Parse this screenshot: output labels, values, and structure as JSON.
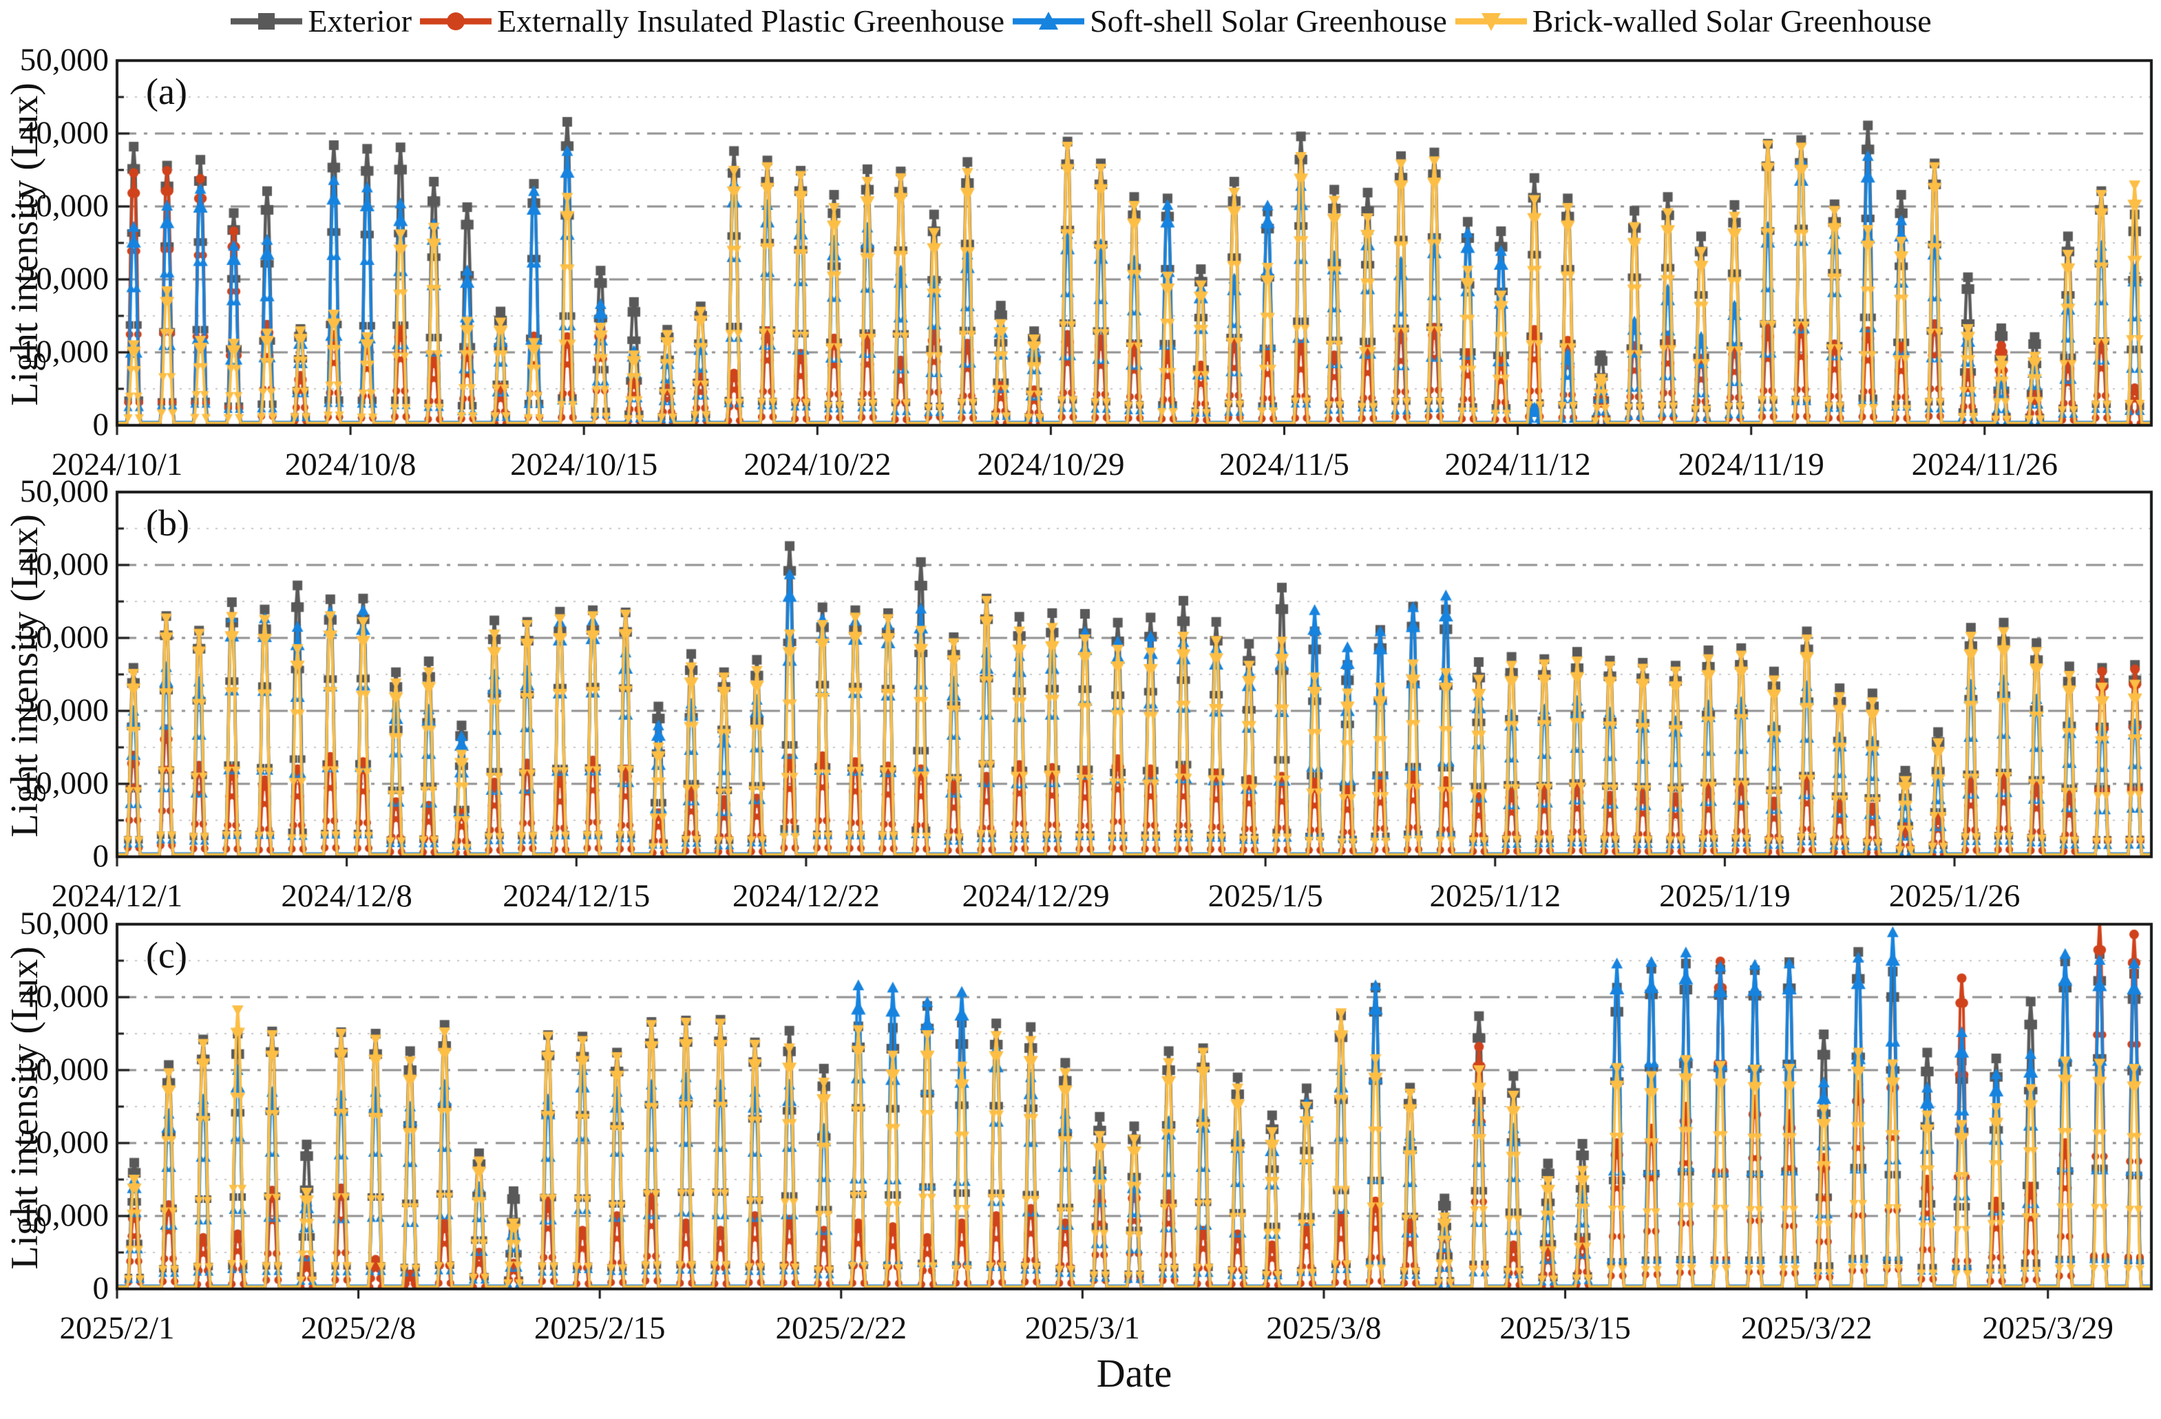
{
  "legend": {
    "items": [
      {
        "label": "Exterior",
        "color": "#595959",
        "marker": "square"
      },
      {
        "label": "Externally Insulated Plastic Greenhouse",
        "color": "#d0421b",
        "marker": "circle"
      },
      {
        "label": "Soft-shell Solar Greenhouse",
        "color": "#1683df",
        "marker": "triangle-up"
      },
      {
        "label": "Brick-walled Solar Greenhouse",
        "color": "#fcbe45",
        "marker": "triangle-down"
      }
    ]
  },
  "axes": {
    "ylabel": "Light intensity (Lux)",
    "xlabel": "Date",
    "ytick_labels": [
      "0",
      "10,000",
      "20,000",
      "30,000",
      "40,000",
      "50,000"
    ]
  },
  "chart_data": {
    "type": "line",
    "title": "",
    "ylabel": "Light intensity (Lux)",
    "xlabel": "Date",
    "ylim": [
      0,
      50000
    ],
    "yticks": [
      0,
      10000,
      20000,
      30000,
      40000,
      50000
    ],
    "grid": {
      "major": "dash-dot",
      "minor": "dotted",
      "minor_step": 5000
    },
    "legend_position": "top",
    "series_meta": [
      {
        "key": "exterior",
        "name": "Exterior",
        "color": "#595959",
        "marker": "square"
      },
      {
        "key": "plastic",
        "name": "Externally Insulated Plastic Greenhouse",
        "color": "#d0421b",
        "marker": "circle"
      },
      {
        "key": "soft_shell",
        "name": "Soft-shell Solar Greenhouse",
        "color": "#1683df",
        "marker": "triangle-up"
      },
      {
        "key": "brick",
        "name": "Brick-walled Solar Greenhouse",
        "color": "#fcbe45",
        "marker": "triangle-down"
      }
    ],
    "panels": [
      {
        "label": "(a)",
        "days": 61,
        "tick_day_offsets": [
          0,
          7,
          14,
          21,
          28,
          35,
          42,
          49,
          56
        ],
        "tick_labels": [
          "2024/10/1",
          "2024/10/8",
          "2024/10/15",
          "2024/10/22",
          "2024/10/29",
          "2024/11/5",
          "2024/11/12",
          "2024/11/19",
          "2024/11/26"
        ],
        "daily_peak_lux": {
          "exterior": [
            38200,
            35600,
            36400,
            29100,
            32100,
            13200,
            38400,
            37900,
            38100,
            33400,
            29900,
            15600,
            33100,
            41600,
            21200,
            16900,
            13100,
            16300,
            37600,
            36300,
            34900,
            31600,
            35100,
            34800,
            28900,
            36100,
            16400,
            12900,
            38900,
            35900,
            31300,
            31100,
            21400,
            33400,
            29300,
            39600,
            32300,
            31900,
            36900,
            37400,
            27900,
            26600,
            33900,
            31100,
            9600,
            29400,
            31300,
            25900,
            30200,
            38600,
            39100,
            30300,
            41100,
            31600,
            35900,
            20300,
            13300,
            12100,
            25900,
            32100,
            28900
          ],
          "plastic": [
            34600,
            34900,
            33800,
            26600,
            13800,
            6800,
            12400,
            11200,
            13100,
            9200,
            10100,
            5200,
            12200,
            12100,
            13200,
            6100,
            5100,
            6600,
            7100,
            12900,
            9800,
            11900,
            12100,
            8900,
            12600,
            11200,
            5400,
            4800,
            12400,
            11800,
            10900,
            9800,
            8200,
            11400,
            10200,
            11100,
            9600,
            10400,
            12800,
            13400,
            9900,
            8800,
            13100,
            11600,
            4100,
            10900,
            12300,
            9100,
            10600,
            13200,
            13600,
            11100,
            12900,
            10800,
            13900,
            7200,
            10900,
            4600,
            8400,
            11300,
            5100
          ],
          "soft_shell": [
            27200,
            30100,
            32400,
            24600,
            25400,
            12100,
            33600,
            32600,
            30400,
            27600,
            21200,
            12400,
            32100,
            37600,
            16600,
            10200,
            9100,
            11200,
            33200,
            30200,
            28400,
            25300,
            27100,
            21200,
            19800,
            23400,
            13800,
            10900,
            26200,
            24800,
            22600,
            30200,
            18900,
            20100,
            30100,
            32800,
            23200,
            26800,
            22400,
            25600,
            26400,
            23900,
            2400,
            9800,
            5200,
            14200,
            18600,
            12100,
            16400,
            27200,
            36400,
            26200,
            36900,
            28100,
            25400,
            12400,
            6100,
            7800,
            17200,
            24600,
            21400
          ],
          "brick": [
            11000,
            18400,
            11600,
            11200,
            12600,
            12900,
            15200,
            12100,
            26200,
            27100,
            14200,
            14100,
            11300,
            31200,
            13400,
            9600,
            12400,
            15600,
            34900,
            35400,
            34200,
            29800,
            33400,
            33900,
            26400,
            34600,
            13900,
            11800,
            38200,
            35200,
            30100,
            20400,
            19200,
            31900,
            21600,
            36800,
            30800,
            28400,
            35800,
            36200,
            21200,
            17800,
            30900,
            29800,
            6400,
            27200,
            29100,
            23800,
            28600,
            38400,
            38100,
            29400,
            26800,
            25200,
            35400,
            13200,
            8900,
            9400,
            23400,
            31600,
            32900
          ]
        }
      },
      {
        "label": "(b)",
        "days": 62,
        "tick_day_offsets": [
          0,
          7,
          14,
          21,
          28,
          35,
          42,
          49,
          56
        ],
        "tick_labels": [
          "2024/12/1",
          "2024/12/8",
          "2024/12/15",
          "2024/12/22",
          "2024/12/29",
          "2025/1/5",
          "2025/1/12",
          "2025/1/19",
          "2025/1/26"
        ],
        "daily_peak_lux": {
          "exterior": [
            25900,
            33000,
            31000,
            34900,
            33900,
            37200,
            35300,
            35400,
            25300,
            26800,
            18000,
            32400,
            32200,
            33600,
            33800,
            33500,
            20600,
            27800,
            25300,
            27000,
            42600,
            34200,
            33800,
            33400,
            40400,
            30100,
            35400,
            32900,
            33400,
            33300,
            32100,
            32800,
            35100,
            32200,
            29200,
            36900,
            30900,
            26300,
            31100,
            34300,
            33900,
            26700,
            27400,
            27100,
            28100,
            26900,
            26600,
            26200,
            28300,
            28600,
            25400,
            30900,
            23100,
            22400,
            11800,
            17100,
            31400,
            32100,
            29300,
            26100,
            25900,
            26300
          ],
          "plastic": [
            13900,
            17500,
            12500,
            12000,
            10500,
            12000,
            13700,
            13000,
            7500,
            7000,
            6000,
            10200,
            12800,
            11000,
            13200,
            12000,
            6000,
            9000,
            7800,
            8000,
            13500,
            13800,
            13000,
            12400,
            12000,
            9800,
            11000,
            12600,
            12200,
            11800,
            13400,
            12000,
            12000,
            11400,
            10600,
            11000,
            10200,
            9400,
            10800,
            11200,
            10400,
            8200,
            8800,
            9200,
            9600,
            8400,
            8600,
            8200,
            9400,
            9800,
            7600,
            10600,
            7200,
            6800,
            4200,
            5400,
            10200,
            10800,
            9600,
            8400,
            25400,
            25700
          ],
          "soft_shell": [
            20000,
            26000,
            24000,
            32800,
            32700,
            31500,
            33600,
            33800,
            20500,
            20200,
            16500,
            25000,
            25500,
            32200,
            32400,
            28000,
            18000,
            21000,
            17000,
            21500,
            38700,
            32600,
            32300,
            31800,
            34000,
            24000,
            28000,
            27500,
            28000,
            30800,
            29500,
            30200,
            29400,
            28600,
            25400,
            28500,
            33800,
            28700,
            30900,
            34200,
            35800,
            22100,
            19500,
            20200,
            21400,
            19800,
            19200,
            18600,
            20800,
            21200,
            17800,
            23400,
            16400,
            15800,
            7600,
            11200,
            23600,
            24200,
            21600,
            18400,
            17600,
            18200
          ],
          "brick": [
            25100,
            32700,
            30600,
            32900,
            32500,
            28500,
            33000,
            32200,
            23800,
            25300,
            14000,
            30500,
            31800,
            32600,
            33000,
            33200,
            15000,
            26000,
            24600,
            25500,
            30500,
            31800,
            32800,
            32600,
            31000,
            29300,
            35100,
            30900,
            31400,
            29800,
            28400,
            28000,
            30200,
            29600,
            26200,
            29500,
            24600,
            22400,
            23200,
            26400,
            25200,
            24300,
            26200,
            26400,
            26800,
            26100,
            25800,
            25400,
            27100,
            27600,
            24200,
            29800,
            21900,
            21200,
            10400,
            15600,
            30200,
            30800,
            28100,
            24800,
            23200,
            23600
          ]
        }
      },
      {
        "label": "(c)",
        "days": 59,
        "tick_day_offsets": [
          0,
          7,
          14,
          21,
          28,
          35,
          42,
          49,
          56
        ],
        "tick_labels": [
          "2025/2/1",
          "2025/2/8",
          "2025/2/15",
          "2025/2/22",
          "2025/3/1",
          "2025/3/8",
          "2025/3/15",
          "2025/3/22",
          "2025/3/29"
        ],
        "daily_peak_lux": {
          "exterior": [
            17300,
            30700,
            34200,
            35000,
            35300,
            19800,
            35200,
            35000,
            32600,
            36200,
            18600,
            13400,
            34800,
            34600,
            32400,
            36600,
            36800,
            36900,
            33800,
            35400,
            30200,
            36000,
            35800,
            38800,
            36500,
            36400,
            35900,
            31000,
            23600,
            22300,
            32600,
            33000,
            29000,
            23800,
            27500,
            37500,
            41300,
            27600,
            12400,
            37400,
            29200,
            17200,
            19900,
            41300,
            43900,
            44600,
            43800,
            43700,
            44800,
            34900,
            46200,
            43500,
            32400,
            31300,
            31600,
            39400,
            44900,
            45900,
            43200
          ],
          "plastic": [
            10500,
            11500,
            7000,
            7500,
            13500,
            4000,
            13800,
            4000,
            2000,
            9000,
            5000,
            3500,
            12000,
            8000,
            10000,
            12500,
            9000,
            8000,
            10000,
            9500,
            8000,
            9000,
            8500,
            7000,
            9000,
            10000,
            11000,
            9000,
            13000,
            13500,
            13000,
            8000,
            7500,
            6000,
            8500,
            10000,
            12000,
            9000,
            7500,
            33200,
            6000,
            5500,
            6500,
            20000,
            22000,
            25000,
            44900,
            26000,
            24000,
            18000,
            28000,
            30000,
            15000,
            42600,
            12000,
            14000,
            20000,
            50500,
            48600
          ],
          "soft_shell": [
            15000,
            24000,
            26000,
            30000,
            27000,
            12000,
            26500,
            27000,
            25000,
            28000,
            14000,
            8000,
            26000,
            30000,
            27000,
            28000,
            29000,
            28000,
            27000,
            28000,
            22000,
            41600,
            41300,
            39300,
            40700,
            33000,
            29000,
            24000,
            17000,
            15000,
            23000,
            24000,
            21000,
            20500,
            25500,
            30000,
            41600,
            21000,
            8000,
            25000,
            22000,
            11000,
            13000,
            44600,
            44800,
            46100,
            44200,
            44400,
            44600,
            28300,
            45400,
            48900,
            27600,
            35200,
            29400,
            32200,
            45900,
            45100,
            44600
          ],
          "brick": [
            15000,
            29600,
            33600,
            38200,
            34800,
            13200,
            35000,
            34200,
            31200,
            35200,
            17500,
            9000,
            34600,
            34000,
            31800,
            36200,
            36500,
            36400,
            33500,
            33000,
            28300,
            35500,
            32000,
            34800,
            30500,
            34700,
            34000,
            29600,
            21000,
            20500,
            31000,
            32400,
            27500,
            21500,
            25000,
            37800,
            31500,
            26800,
            9800,
            30000,
            26500,
            14800,
            16200,
            30300,
            29200,
            31400,
            30600,
            30100,
            30200,
            24600,
            32400,
            30800,
            23800,
            22500,
            24800,
            27400,
            31200,
            30900,
            30200
          ]
        }
      }
    ]
  }
}
